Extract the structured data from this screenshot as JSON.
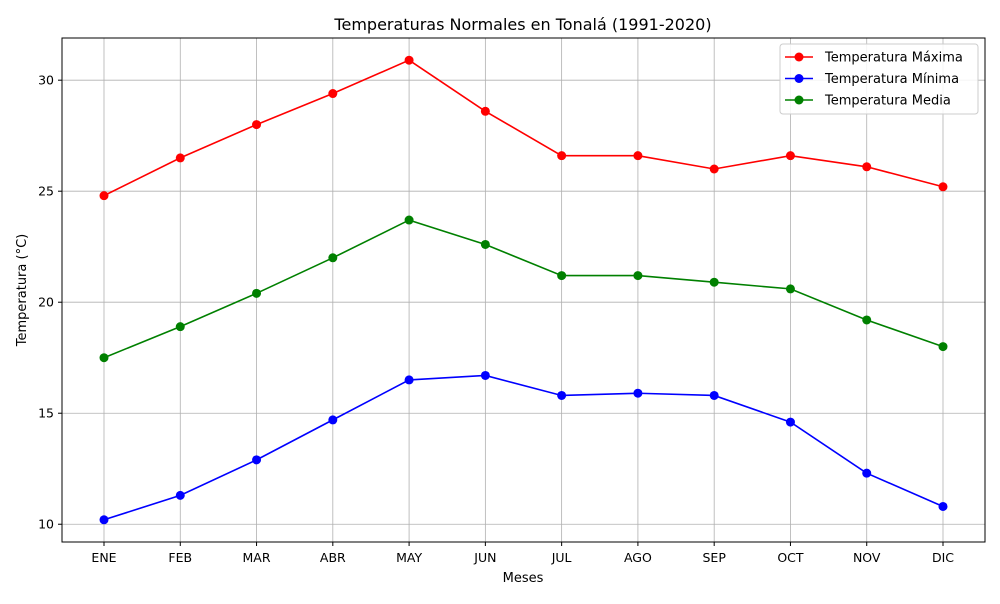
{
  "chart_data": {
    "type": "line",
    "title": "Temperaturas Normales en Tonalá (1991-2020)",
    "xlabel": "Meses",
    "ylabel": "Temperatura (°C)",
    "categories": [
      "ENE",
      "FEB",
      "MAR",
      "ABR",
      "MAY",
      "JUN",
      "JUL",
      "AGO",
      "SEP",
      "OCT",
      "NOV",
      "DIC"
    ],
    "ylim": [
      9.2,
      31.9
    ],
    "yticks": [
      10,
      15,
      20,
      25,
      30
    ],
    "grid": true,
    "legend_position": "top-right",
    "series": [
      {
        "name": "Temperatura Máxima",
        "color": "#ff0000",
        "values": [
          24.8,
          26.5,
          28.0,
          29.4,
          30.9,
          28.6,
          26.6,
          26.6,
          26.0,
          26.6,
          26.1,
          25.2
        ]
      },
      {
        "name": "Temperatura Mínima",
        "color": "#0000ff",
        "values": [
          10.2,
          11.3,
          12.9,
          14.7,
          16.5,
          16.7,
          15.8,
          15.9,
          15.8,
          14.6,
          12.3,
          10.8
        ]
      },
      {
        "name": "Temperatura Media",
        "color": "#008000",
        "values": [
          17.5,
          18.9,
          20.4,
          22.0,
          23.7,
          22.6,
          21.2,
          21.2,
          20.9,
          20.6,
          19.2,
          18.0
        ]
      }
    ]
  }
}
